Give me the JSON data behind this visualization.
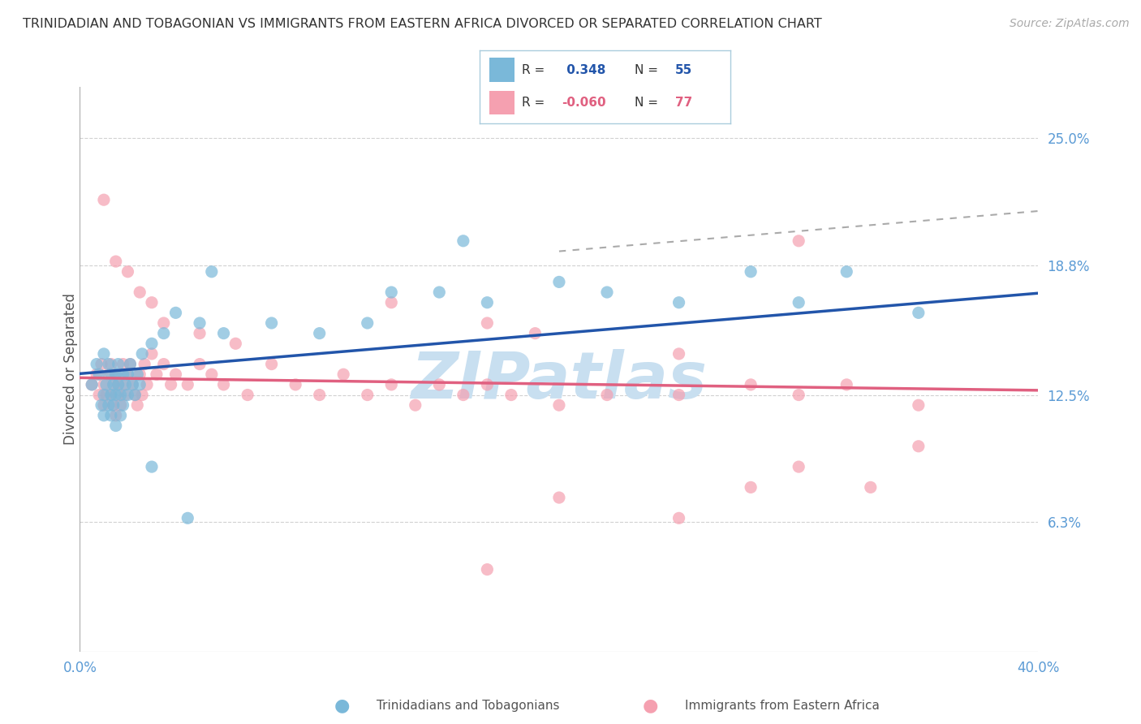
{
  "title": "TRINIDADIAN AND TOBAGONIAN VS IMMIGRANTS FROM EASTERN AFRICA DIVORCED OR SEPARATED CORRELATION CHART",
  "source": "Source: ZipAtlas.com",
  "ylabel": "Divorced or Separated",
  "x_min": 0.0,
  "x_max": 0.4,
  "y_min": 0.0,
  "y_max": 0.275,
  "y_ticks": [
    0.063,
    0.125,
    0.188,
    0.25
  ],
  "y_tick_labels": [
    "6.3%",
    "12.5%",
    "18.8%",
    "25.0%"
  ],
  "x_tick_labels_left": "0.0%",
  "x_tick_labels_right": "40.0%",
  "blue_color": "#7ab8d9",
  "pink_color": "#f5a0b0",
  "blue_line_color": "#2255aa",
  "pink_line_color": "#e06080",
  "blue_R": 0.348,
  "blue_N": 55,
  "pink_R": -0.06,
  "pink_N": 77,
  "blue_label": "Trinidadians and Tobagonians",
  "pink_label": "Immigrants from Eastern Africa",
  "background_color": "#ffffff",
  "grid_color": "#cccccc",
  "title_color": "#333333",
  "tick_label_color": "#5b9bd5",
  "watermark_color": "#c8dff0",
  "blue_scatter_x": [
    0.005,
    0.007,
    0.008,
    0.009,
    0.01,
    0.01,
    0.01,
    0.011,
    0.012,
    0.012,
    0.013,
    0.013,
    0.013,
    0.014,
    0.014,
    0.015,
    0.015,
    0.015,
    0.016,
    0.016,
    0.017,
    0.017,
    0.018,
    0.018,
    0.019,
    0.02,
    0.02,
    0.021,
    0.022,
    0.023,
    0.024,
    0.025,
    0.026,
    0.03,
    0.035,
    0.04,
    0.05,
    0.06,
    0.08,
    0.1,
    0.12,
    0.15,
    0.17,
    0.2,
    0.22,
    0.25,
    0.28,
    0.3,
    0.32,
    0.35,
    0.03,
    0.045,
    0.055,
    0.13,
    0.16
  ],
  "blue_scatter_y": [
    0.13,
    0.14,
    0.135,
    0.12,
    0.125,
    0.115,
    0.145,
    0.13,
    0.12,
    0.14,
    0.125,
    0.135,
    0.115,
    0.13,
    0.12,
    0.125,
    0.135,
    0.11,
    0.13,
    0.14,
    0.125,
    0.115,
    0.135,
    0.12,
    0.13,
    0.125,
    0.135,
    0.14,
    0.13,
    0.125,
    0.135,
    0.13,
    0.145,
    0.15,
    0.155,
    0.165,
    0.16,
    0.155,
    0.16,
    0.155,
    0.16,
    0.175,
    0.17,
    0.18,
    0.175,
    0.17,
    0.185,
    0.17,
    0.185,
    0.165,
    0.09,
    0.065,
    0.185,
    0.175,
    0.2
  ],
  "pink_scatter_x": [
    0.005,
    0.007,
    0.008,
    0.009,
    0.01,
    0.01,
    0.011,
    0.012,
    0.013,
    0.013,
    0.014,
    0.014,
    0.015,
    0.015,
    0.016,
    0.016,
    0.017,
    0.018,
    0.018,
    0.019,
    0.02,
    0.021,
    0.022,
    0.023,
    0.024,
    0.025,
    0.026,
    0.027,
    0.028,
    0.03,
    0.032,
    0.035,
    0.038,
    0.04,
    0.045,
    0.05,
    0.055,
    0.06,
    0.07,
    0.08,
    0.09,
    0.1,
    0.11,
    0.12,
    0.13,
    0.14,
    0.15,
    0.16,
    0.17,
    0.18,
    0.2,
    0.22,
    0.25,
    0.28,
    0.3,
    0.32,
    0.35,
    0.01,
    0.015,
    0.02,
    0.025,
    0.03,
    0.035,
    0.05,
    0.065,
    0.13,
    0.17,
    0.19,
    0.25,
    0.3,
    0.33,
    0.35,
    0.28,
    0.2,
    0.25,
    0.17,
    0.3
  ],
  "pink_scatter_y": [
    0.13,
    0.135,
    0.125,
    0.14,
    0.12,
    0.13,
    0.125,
    0.135,
    0.125,
    0.14,
    0.13,
    0.12,
    0.135,
    0.115,
    0.13,
    0.125,
    0.12,
    0.13,
    0.14,
    0.125,
    0.135,
    0.14,
    0.13,
    0.125,
    0.12,
    0.135,
    0.125,
    0.14,
    0.13,
    0.145,
    0.135,
    0.14,
    0.13,
    0.135,
    0.13,
    0.14,
    0.135,
    0.13,
    0.125,
    0.14,
    0.13,
    0.125,
    0.135,
    0.125,
    0.13,
    0.12,
    0.13,
    0.125,
    0.13,
    0.125,
    0.12,
    0.125,
    0.125,
    0.13,
    0.125,
    0.13,
    0.12,
    0.22,
    0.19,
    0.185,
    0.175,
    0.17,
    0.16,
    0.155,
    0.15,
    0.17,
    0.16,
    0.155,
    0.145,
    0.09,
    0.08,
    0.1,
    0.08,
    0.075,
    0.065,
    0.04,
    0.2
  ]
}
